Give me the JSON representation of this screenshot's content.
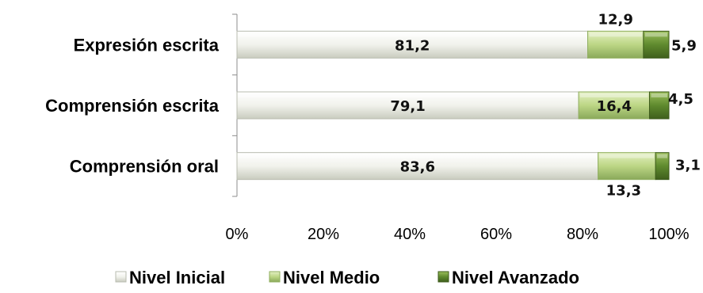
{
  "chart_data": {
    "type": "bar",
    "orientation": "horizontal",
    "stacked": "percent",
    "categories": [
      "Expresión escrita",
      "Comprensión escrita",
      "Comprensión oral"
    ],
    "series": [
      {
        "name": "Nivel Inicial",
        "values": [
          81.2,
          79.1,
          83.6
        ],
        "labels": [
          "81,2",
          "79,1",
          "83,6"
        ],
        "color": "#e9ebe3"
      },
      {
        "name": "Nivel Medio",
        "values": [
          12.9,
          16.4,
          13.3
        ],
        "labels": [
          "12,9",
          "16,4",
          "13,3"
        ],
        "color": "#b9d37f"
      },
      {
        "name": "Nivel Avanzado",
        "values": [
          5.9,
          4.5,
          3.1
        ],
        "labels": [
          "5,9",
          "4,5",
          "3,1"
        ],
        "color": "#5f8a2e"
      }
    ],
    "xticks": [
      "0%",
      "20%",
      "40%",
      "60%",
      "80%",
      "100%"
    ],
    "xlim": [
      0,
      100
    ],
    "grid": false,
    "legend": "bottom"
  }
}
